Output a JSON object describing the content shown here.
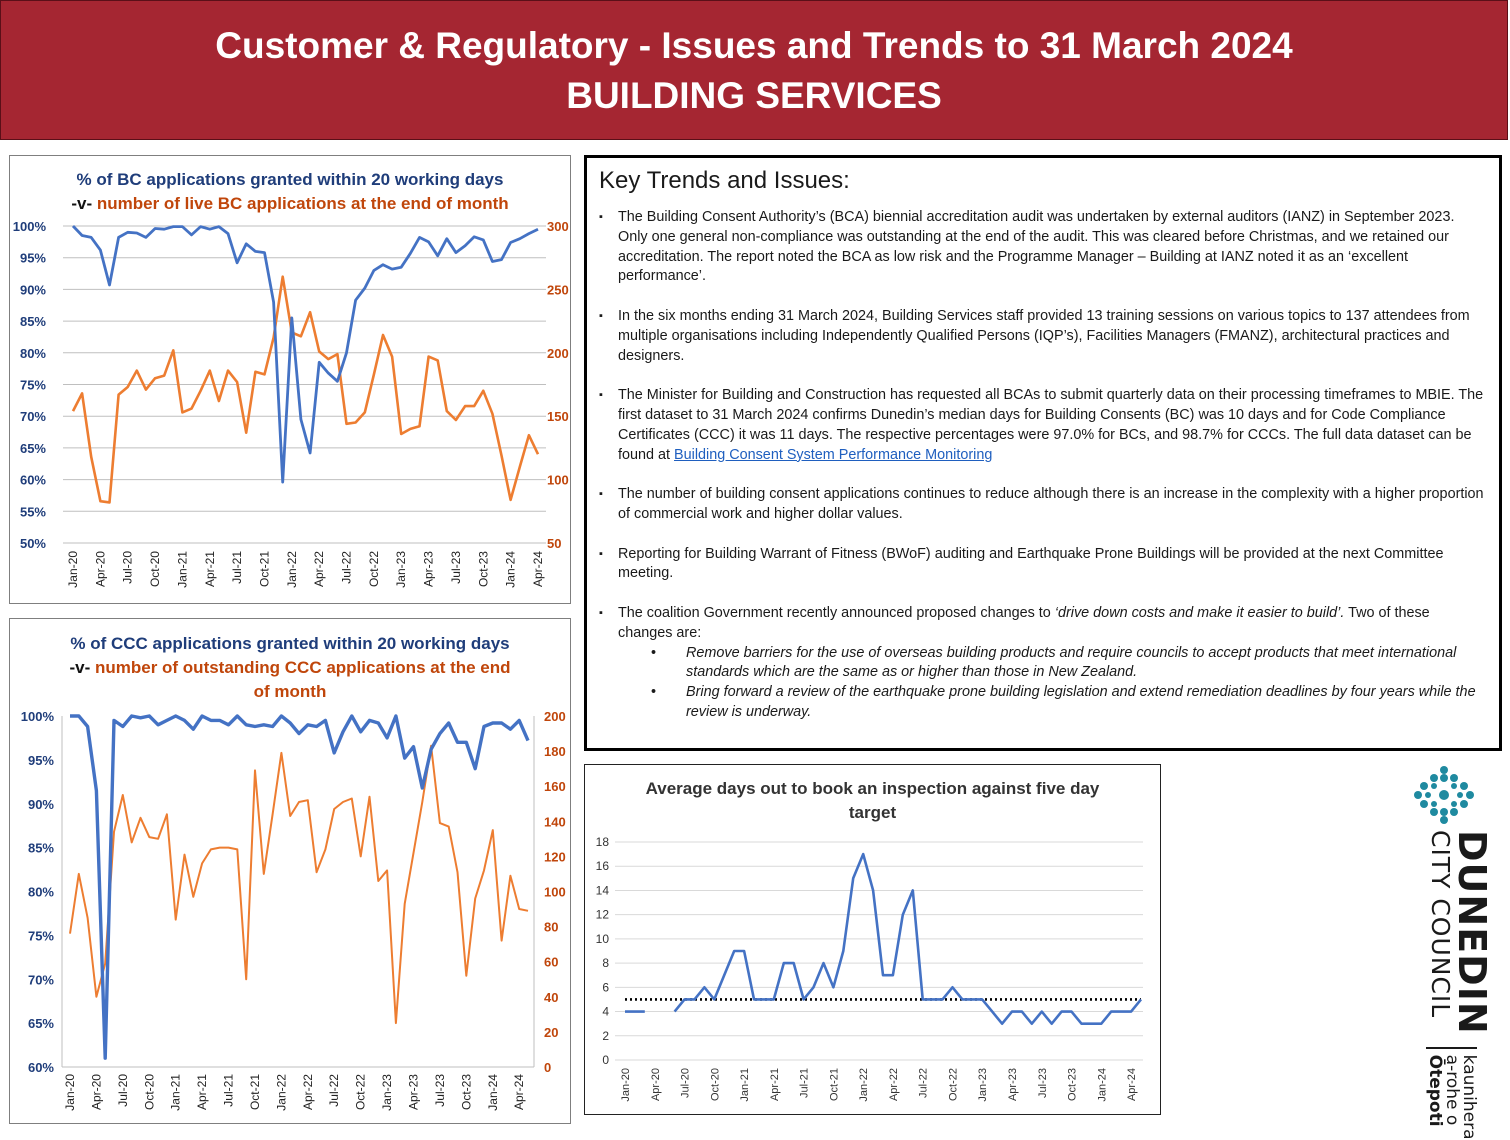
{
  "header": {
    "line1": "Customer & Regulatory - Issues and Trends to 31 March 2024",
    "line2": "BUILDING SERVICES"
  },
  "colors": {
    "banner": "#a52632",
    "blue_series": "#4472c4",
    "orange_series": "#ed7d31",
    "target": "#000000"
  },
  "key_trends": {
    "heading": "Key Trends and Issues:",
    "bullet_glyph": "▪",
    "items": [
      {
        "text": "The Building Consent Authority’s (BCA) biennial accreditation audit was undertaken by external auditors (IANZ) in September 2023. Only one general non-compliance was outstanding at the end of the audit. This was cleared before Christmas, and we retained our accreditation. The report noted the BCA as low risk and the Programme Manager – Building at IANZ noted it as an ‘excellent performance’."
      },
      {
        "text": "In the six months ending 31 March 2024, Building Services staff provided 13 training sessions on various topics to 137 attendees from multiple organisations including Independently Qualified Persons (IQP’s), Facilities Managers (FMANZ), architectural practices and designers."
      },
      {
        "text": "The Minister for Building and Construction has requested all BCAs to submit quarterly data on their processing timeframes to MBIE. The first dataset to 31 March 2024 confirms Dunedin’s median days for Building Consents (BC) was 10 days and for Code Compliance Certificates (CCC) it was 11 days. The respective percentages were 97.0% for BCs, and 98.7% for CCCs. The full data dataset can be found at ",
        "link": "Building Consent System Performance Monitoring"
      },
      {
        "text": "The number of building consent applications continues to reduce although there is an increase in the complexity with a higher proportion of commercial work and higher dollar values."
      },
      {
        "text": "Reporting for Building Warrant of Fitness (BWoF) auditing and Earthquake Prone Buildings will be provided at the next Committee meeting."
      },
      {
        "text_pre": "The coalition Government recently announced proposed changes to ",
        "text_italic": "‘drive down costs and make it easier to build’.",
        "text_post": " Two of these changes are:",
        "sub_items": [
          "Remove barriers for the use of overseas building products and require councils to accept products that meet international standards which are the same as or higher than those in New Zealand.",
          "Bring forward a review of the earthquake prone building legislation and extend remediation deadlines by four years while the review is underway."
        ]
      }
    ]
  },
  "logo": {
    "name": "DUNEDIN",
    "sub": "CITY COUNCIL",
    "maori1": "kaunihera",
    "maori2": "a-rohe o",
    "maori3": "Ōtepoti",
    "icon": "dcc-lattice-logo-icon"
  },
  "chart_data": [
    {
      "type": "line",
      "title_line1": "% of BC applications granted within 20 working days",
      "title_vs": "-v-",
      "title_line2": "number of live BC applications at the end of month",
      "x_ticks": [
        "Jan-20",
        "Apr-20",
        "Jul-20",
        "Oct-20",
        "Jan-21",
        "Apr-21",
        "Jul-21",
        "Oct-21",
        "Jan-22",
        "Apr-22",
        "Jul-22",
        "Oct-22",
        "Jan-23",
        "Apr-23",
        "Jul-23",
        "Oct-23",
        "Jan-24",
        "Apr-24"
      ],
      "y_left": {
        "min": 50,
        "max": 100,
        "step": 5,
        "suffix": "%"
      },
      "y_right": {
        "min": 50,
        "max": 300,
        "step": 50
      },
      "grid": true,
      "series": [
        {
          "axis": "left",
          "color": "#4472c4",
          "values": [
            100,
            98.5,
            98.2,
            96.2,
            90.7,
            98.2,
            99,
            98.9,
            98.2,
            99.6,
            99.5,
            99.9,
            99.9,
            98.6,
            99.9,
            99.5,
            99.9,
            98.8,
            94.2,
            97.2,
            96,
            95.8,
            88,
            59.6,
            85.5,
            69.5,
            64.2,
            78.5,
            76.8,
            75.5,
            80,
            88.3,
            90.2,
            93,
            93.9,
            93.2,
            93.5,
            95.7,
            98.2,
            97.5,
            95.3,
            98,
            95.8,
            96.9,
            98.3,
            97.8,
            94.4,
            94.7,
            97.4,
            98,
            98.8,
            99.5
          ]
        },
        {
          "axis": "right",
          "color": "#ed7d31",
          "values": [
            154,
            168,
            118,
            83,
            82,
            167,
            173,
            186,
            171,
            180,
            182,
            202,
            153,
            156,
            170,
            186,
            162,
            186,
            177,
            137,
            185,
            183,
            212,
            260,
            216,
            213,
            232,
            201,
            195,
            199,
            144,
            145,
            153,
            183,
            214,
            197,
            136,
            140,
            142,
            197,
            194,
            154,
            147,
            158,
            158,
            170,
            152,
            119,
            84,
            110,
            135,
            120
          ]
        }
      ]
    },
    {
      "type": "line",
      "title_line1": "% of CCC applications granted within 20 working days",
      "title_vs": "-v-",
      "title_line2": "number of outstanding CCC applications at the end of month",
      "x_ticks": [
        "Jan-20",
        "Apr-20",
        "Jul-20",
        "Oct-20",
        "Jan-21",
        "Apr-21",
        "Jul-21",
        "Oct-21",
        "Jan-22",
        "Apr-22",
        "Jul-22",
        "Oct-22",
        "Jan-23",
        "Apr-23",
        "Jul-23",
        "Oct-23",
        "Jan-24",
        "Apr-24"
      ],
      "y_left": {
        "min": 60,
        "max": 100,
        "step": 5,
        "suffix": "%"
      },
      "y_right": {
        "min": 0,
        "max": 200,
        "step": 20
      },
      "grid": false,
      "series": [
        {
          "axis": "left",
          "color": "#4472c4",
          "values": [
            100,
            100,
            98.8,
            91.5,
            61,
            99.5,
            98.8,
            100,
            99.8,
            100,
            99,
            99.5,
            100,
            99.5,
            98.5,
            100,
            99.5,
            99.5,
            99,
            100,
            99,
            98.8,
            99,
            98.8,
            100,
            99.2,
            98,
            99,
            98.8,
            99.5,
            95.8,
            98.2,
            100,
            98.2,
            99.5,
            99.2,
            97.5,
            100,
            95.2,
            96.5,
            91.8,
            96.2,
            98,
            99.2,
            97,
            97,
            94,
            98.8,
            99.2,
            99.2,
            98.5,
            99.5,
            97.2
          ]
        },
        {
          "axis": "right",
          "color": "#ed7d31",
          "values": [
            76,
            110,
            85,
            40,
            59,
            134,
            155,
            128,
            142,
            131,
            130,
            144,
            84,
            121,
            97,
            116,
            124,
            125,
            125,
            124,
            50,
            169,
            110,
            144,
            179,
            143,
            151,
            152,
            111,
            124,
            147,
            151,
            153,
            120,
            154,
            106,
            112,
            25,
            93,
            122,
            151,
            183,
            139,
            137,
            111,
            52,
            96,
            112,
            135,
            72,
            109,
            90,
            89
          ]
        }
      ]
    },
    {
      "type": "line",
      "title_line1": "Average days out to book an inspection against five day",
      "title_line2": "target",
      "x_ticks": [
        "Jan-20",
        "Apr-20",
        "Jul-20",
        "Oct-20",
        "Jan-21",
        "Apr-21",
        "Jul-21",
        "Oct-21",
        "Jan-22",
        "Apr-22",
        "Jul-22",
        "Oct-22",
        "Jan-23",
        "Apr-23",
        "Jul-23",
        "Oct-23",
        "Jan-24",
        "Apr-24"
      ],
      "y": {
        "min": 0,
        "max": 18,
        "step": 2
      },
      "grid": true,
      "series": [
        {
          "name": "Average days",
          "color": "#4472c4",
          "values": [
            4,
            4,
            4,
            null,
            null,
            4,
            5,
            5,
            6,
            5,
            7,
            9,
            9,
            5,
            5,
            5,
            8,
            8,
            5,
            6,
            8,
            6,
            9,
            15,
            17,
            14,
            7,
            7,
            12,
            14,
            5,
            5,
            5,
            6,
            5,
            5,
            5,
            4,
            3,
            4,
            4,
            3,
            4,
            3,
            4,
            4,
            3,
            3,
            3,
            4,
            4,
            4,
            5
          ]
        },
        {
          "name": "Target",
          "color": "#000000",
          "style": "dotted",
          "value": 5
        }
      ]
    }
  ]
}
